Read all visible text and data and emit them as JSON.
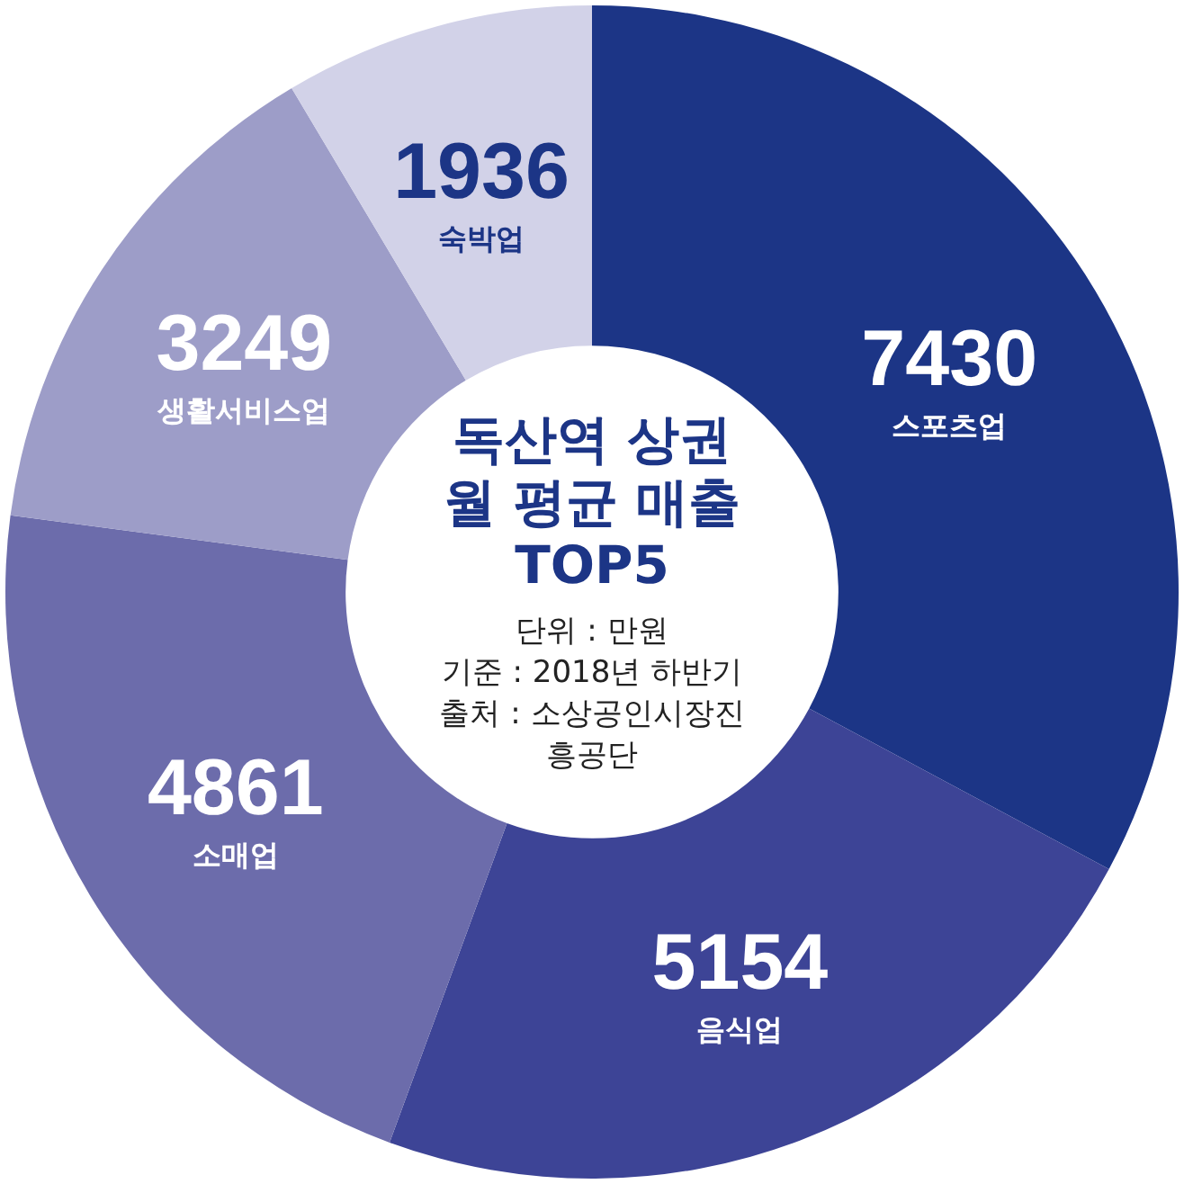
{
  "chart_data": {
    "type": "donut",
    "title": "독산역 상권 월 평균 매출 TOP5",
    "categories": [
      "스포츠업",
      "음식업",
      "소매업",
      "생활서비스업",
      "숙박업"
    ],
    "values": [
      7430,
      5154,
      4861,
      3249,
      1936
    ],
    "colors": [
      "#1c3586",
      "#3d4496",
      "#6c6cab",
      "#9d9dc8",
      "#d2d2e8"
    ],
    "data_labels": true,
    "annotations": [
      "단위 : 만원",
      "기준 : 2018년 하반기",
      "출처 : 소상공인시장진흥공단"
    ]
  }
}
